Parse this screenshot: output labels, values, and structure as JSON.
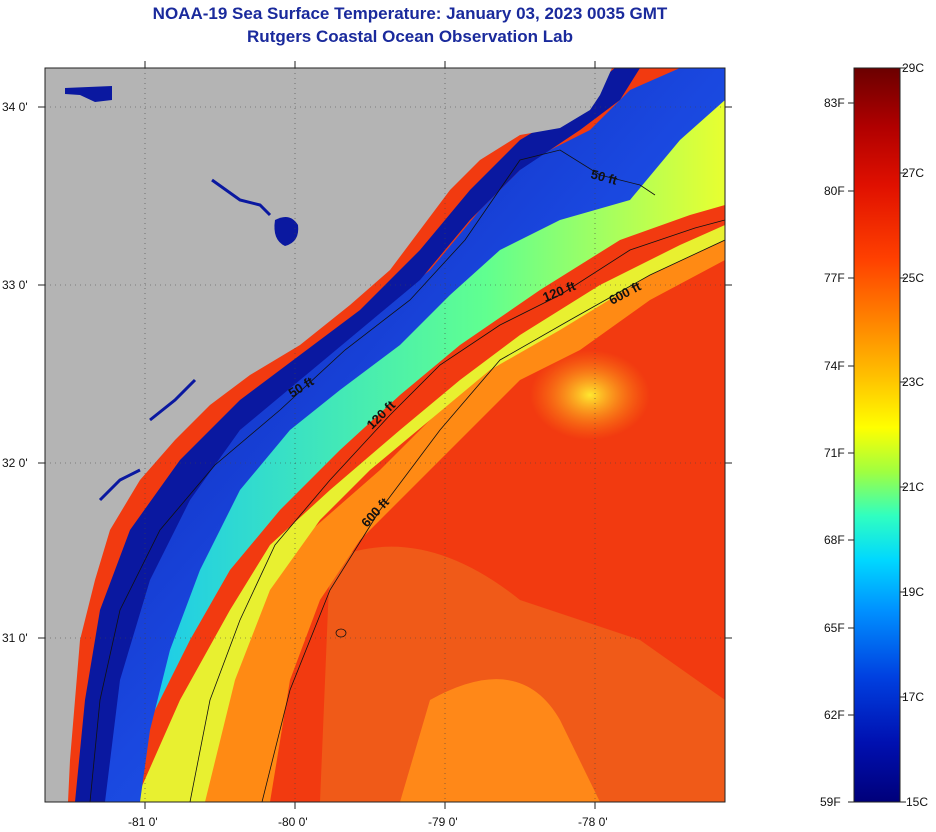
{
  "header": {
    "title": "NOAA-19 Sea Surface Temperature:  January 03, 2023 0035 GMT",
    "subtitle": "Rutgers Coastal Ocean Observation Lab"
  },
  "map": {
    "lat_labels": [
      "34 0'",
      "33 0'",
      "32 0'",
      "31 0'"
    ],
    "lon_labels": [
      "-81 0'",
      "-80 0'",
      "-79 0'",
      "-78 0'"
    ],
    "contour_labels": [
      "50 ft",
      "120 ft",
      "600 ft",
      "50 ft",
      "120 ft",
      "600 ft"
    ]
  },
  "colorbar": {
    "fahrenheit_labels": [
      "83F",
      "80F",
      "77F",
      "74F",
      "71F",
      "68F",
      "65F",
      "62F",
      "59F"
    ],
    "celsius_labels": [
      "29C",
      "27C",
      "25C",
      "23C",
      "21C",
      "19C",
      "17C",
      "15C"
    ],
    "colors": [
      "#6b0000",
      "#b00000",
      "#e01000",
      "#ff4000",
      "#ff8000",
      "#ffc000",
      "#ffff00",
      "#a0ff40",
      "#30ffc0",
      "#00d8ff",
      "#0090ff",
      "#0040e0",
      "#0010b0",
      "#00007a"
    ]
  },
  "colors": {
    "land": "#b4b4b4",
    "title": "#1a2a9c"
  }
}
